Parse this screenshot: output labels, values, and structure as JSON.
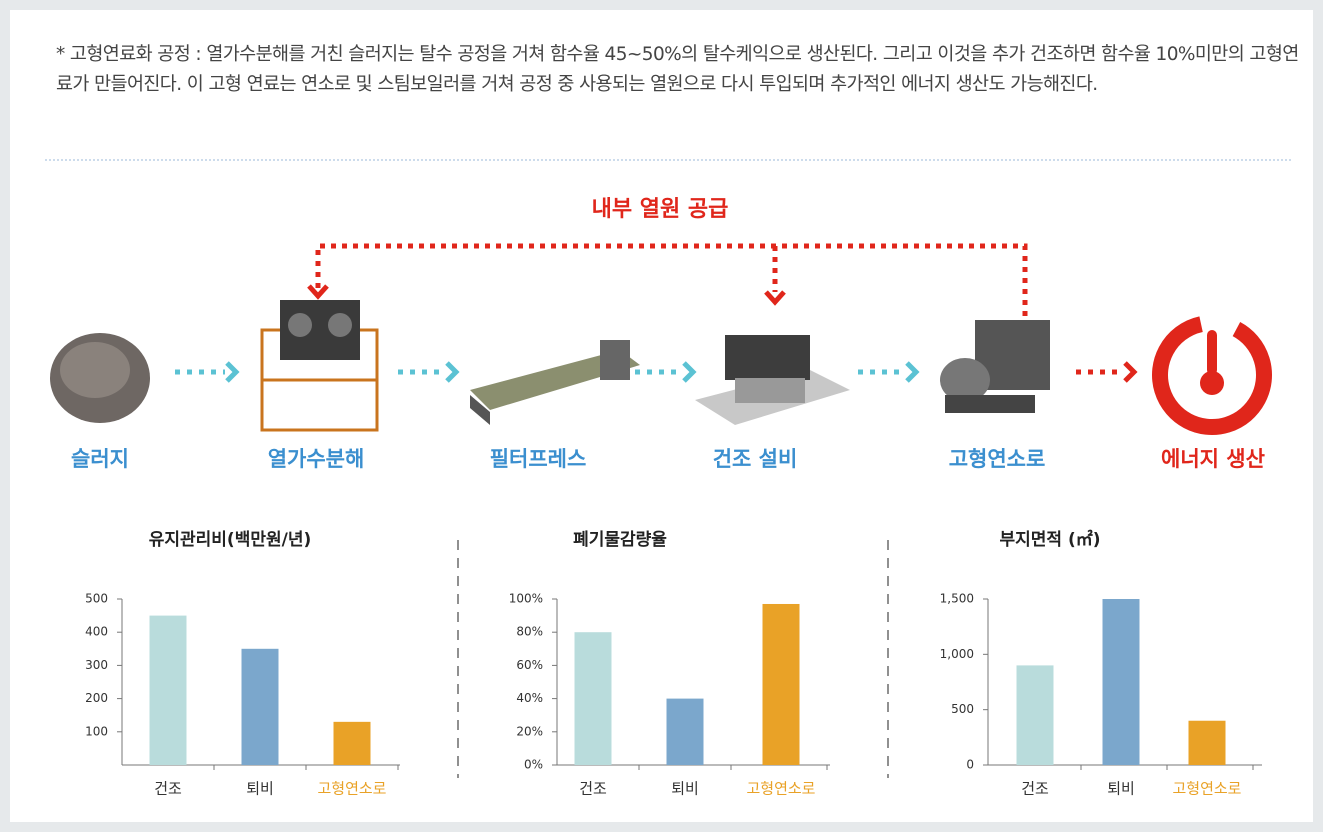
{
  "note": "* 고형연료화 공정 : 열가수분해를 거친 슬러지는 탈수 공정을 거쳐 함수율 45~50%의 탈수케익으로 생산된다. 그리고 이것을 추가 건조하면 함수율 10%미만의 고형연료가 만들어진다. 이 고형 연료는 연소로 및 스팀보일러를 거쳐 공정 중 사용되는 열원으로 다시 투입되며 추가적인 에너지 생산도 가능해진다.",
  "process": {
    "loop_label": "내부 열원 공급",
    "steps": [
      "슬러지",
      "열가수분해",
      "필터프레스",
      "건조 설비",
      "고형연소로",
      "에너지 생산"
    ]
  },
  "chart_data": [
    {
      "type": "bar",
      "title": "유지관리비(백만원/년)",
      "categories": [
        "건조",
        "퇴비",
        "고형연소로"
      ],
      "values": [
        450,
        350,
        130
      ],
      "colors": [
        "#b9dcdc",
        "#7ba7cc",
        "#e9a227"
      ],
      "category_colors": [
        "#333333",
        "#333333",
        "#e9a227"
      ],
      "ylim": [
        0,
        500
      ],
      "yticks": [
        100,
        200,
        300,
        400,
        500
      ]
    },
    {
      "type": "bar",
      "title": "폐기물감량율",
      "categories": [
        "건조",
        "퇴비",
        "고형연소로"
      ],
      "values": [
        80,
        40,
        97
      ],
      "colors": [
        "#b9dcdc",
        "#7ba7cc",
        "#e9a227"
      ],
      "category_colors": [
        "#333333",
        "#333333",
        "#e9a227"
      ],
      "ylim": [
        0,
        100
      ],
      "yticks": [
        {
          "value": 0,
          "label": "0%"
        },
        {
          "value": 20,
          "label": "20%"
        },
        {
          "value": 40,
          "label": "40%"
        },
        {
          "value": 60,
          "label": "60%"
        },
        {
          "value": 80,
          "label": "80%"
        },
        {
          "value": 100,
          "label": "100%"
        }
      ]
    },
    {
      "type": "bar",
      "title": "부지면적 (㎡)",
      "categories": [
        "건조",
        "퇴비",
        "고형연소로"
      ],
      "values": [
        900,
        1500,
        400
      ],
      "colors": [
        "#b9dcdc",
        "#7ba7cc",
        "#e9a227"
      ],
      "category_colors": [
        "#333333",
        "#333333",
        "#e9a227"
      ],
      "ylim": [
        0,
        1500
      ],
      "yticks": [
        0,
        500,
        {
          "value": 1000,
          "label": "1,000"
        },
        {
          "value": 1500,
          "label": "1,500"
        }
      ]
    }
  ]
}
